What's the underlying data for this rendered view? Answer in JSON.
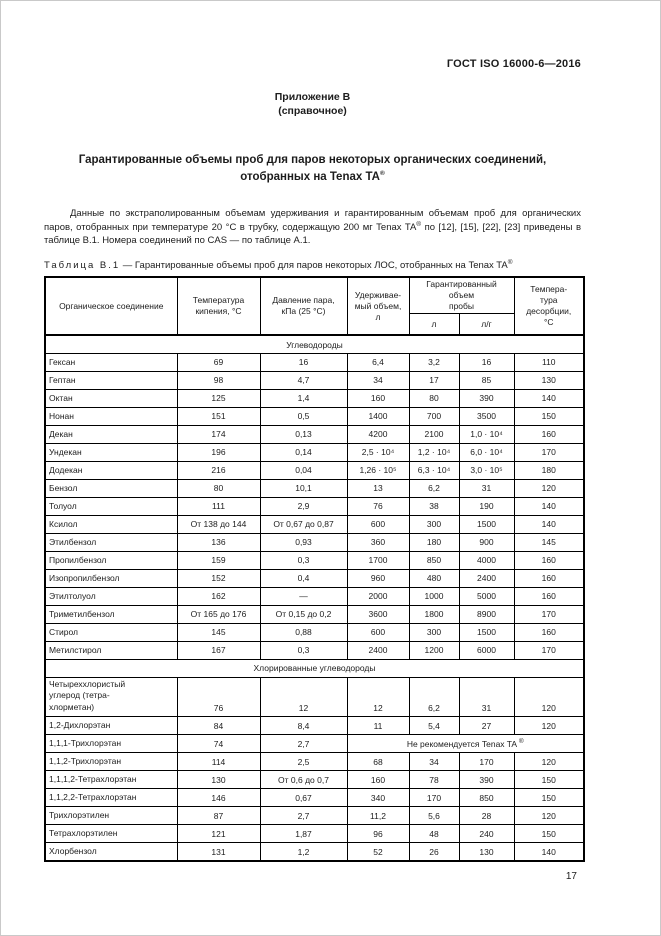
{
  "doc_header": {
    "standard": "ГОСТ ISO 16000-6—2016"
  },
  "annex": {
    "title": "Приложение В",
    "subtitle": "(справочное)"
  },
  "title": {
    "line1": "Гарантированные объемы проб для паров некоторых органических соединений,",
    "line2": "отобранных на Tenax TA"
  },
  "reg_mark": "®",
  "intro": {
    "part1": "Данные по экстраполированным объемам удерживания и гарантированным объемам проб для органических паров, отобранных при температуре 20 °С в трубку, содержащую 200 мг Tenax TA",
    "part2": " по [12], [15], [22], [23] приведены в таблице В.1. Номера соединений по CAS — по таблице А.1."
  },
  "caption": {
    "label": "Таблица В.1",
    "text": " — Гарантированные объемы проб для паров некоторых ЛОС, отобранных на Tenax TA"
  },
  "table": {
    "header": {
      "compound": "Органическое соединение",
      "boiling": "Температура\nкипения, °С",
      "pressure": "Давление пара,\nкПа (25 °С)",
      "retention": "Удерживае-\nмый объем,\nл",
      "guaranteed": "Гарантированный объем\nпробы",
      "guaranteed_l": "л",
      "guaranteed_lg": "л/г",
      "desorption": "Темпера-\nтура\nдесорбции,\n°С"
    },
    "sections": [
      {
        "title": "Углеводороды",
        "rows": [
          {
            "name": "Гексан",
            "cells": [
              "69",
              "16",
              "6,4",
              "3,2",
              "16",
              "110"
            ]
          },
          {
            "name": "Гептан",
            "cells": [
              "98",
              "4,7",
              "34",
              "17",
              "85",
              "130"
            ]
          },
          {
            "name": "Октан",
            "cells": [
              "125",
              "1,4",
              "160",
              "80",
              "390",
              "140"
            ]
          },
          {
            "name": "Нонан",
            "cells": [
              "151",
              "0,5",
              "1400",
              "700",
              "3500",
              "150"
            ]
          },
          {
            "name": "Декан",
            "cells": [
              "174",
              "0,13",
              "4200",
              "2100",
              "1,0 · 10⁴",
              "160"
            ]
          },
          {
            "name": "Ундекан",
            "cells": [
              "196",
              "0,14",
              "2,5 · 10⁴",
              "1,2 · 10⁴",
              "6,0 · 10⁴",
              "170"
            ]
          },
          {
            "name": "Додекан",
            "cells": [
              "216",
              "0,04",
              "1,26 · 10⁵",
              "6,3 · 10⁴",
              "3,0 · 10⁵",
              "180"
            ]
          },
          {
            "name": "Бензол",
            "cells": [
              "80",
              "10,1",
              "13",
              "6,2",
              "31",
              "120"
            ]
          },
          {
            "name": "Толуол",
            "cells": [
              "111",
              "2,9",
              "76",
              "38",
              "190",
              "140"
            ]
          },
          {
            "name": "Ксилол",
            "cells": [
              "От 138 до 144",
              "От 0,67 до 0,87",
              "600",
              "300",
              "1500",
              "140"
            ]
          },
          {
            "name": "Этилбензол",
            "cells": [
              "136",
              "0,93",
              "360",
              "180",
              "900",
              "145"
            ]
          },
          {
            "name": "Пропилбензол",
            "cells": [
              "159",
              "0,3",
              "1700",
              "850",
              "4000",
              "160"
            ]
          },
          {
            "name": "Изопропилбензол",
            "cells": [
              "152",
              "0,4",
              "960",
              "480",
              "2400",
              "160"
            ]
          },
          {
            "name": "Этилтолуол",
            "cells": [
              "162",
              "—",
              "2000",
              "1000",
              "5000",
              "160"
            ]
          },
          {
            "name": "Триметилбензол",
            "cells": [
              "От 165 до 176",
              "От 0,15 до 0,2",
              "3600",
              "1800",
              "8900",
              "170"
            ]
          },
          {
            "name": "Стирол",
            "cells": [
              "145",
              "0,88",
              "600",
              "300",
              "1500",
              "160"
            ]
          },
          {
            "name": "Метилстирол",
            "cells": [
              "167",
              "0,3",
              "2400",
              "1200",
              "6000",
              "170"
            ]
          }
        ]
      },
      {
        "title": "Хлорированные углеводороды",
        "rows": [
          {
            "name": "Четыреххлористый\nуглерод (тетра-\nхлорметан)",
            "valign": "bottom",
            "cells": [
              "76",
              "12",
              "12",
              "6,2",
              "31",
              "120"
            ]
          },
          {
            "name": "1,2-Дихлорэтан",
            "cells": [
              "84",
              "8,4",
              "11",
              "5,4",
              "27",
              "120"
            ]
          },
          {
            "name": "1,1,1-Трихлорэтан",
            "cells": [
              "74",
              "2,7"
            ],
            "note": "Не рекомендуется Tenax TA "
          },
          {
            "name": "1,1,2-Трихлорэтан",
            "cells": [
              "114",
              "2,5",
              "68",
              "34",
              "170",
              "120"
            ]
          },
          {
            "name": "1,1,1,2-Тетрахлорэтан",
            "cells": [
              "130",
              "От 0,6 до 0,7",
              "160",
              "78",
              "390",
              "150"
            ]
          },
          {
            "name": "1,1,2,2-Тетрахлорэтан",
            "cells": [
              "146",
              "0,67",
              "340",
              "170",
              "850",
              "150"
            ]
          },
          {
            "name": "Трихлорэтилен",
            "cells": [
              "87",
              "2,7",
              "11,2",
              "5,6",
              "28",
              "120"
            ]
          },
          {
            "name": "Тетрахлорэтилен",
            "cells": [
              "121",
              "1,87",
              "96",
              "48",
              "240",
              "150"
            ]
          },
          {
            "name": "Хлорбензол",
            "cells": [
              "131",
              "1,2",
              "52",
              "26",
              "130",
              "140"
            ]
          }
        ]
      }
    ]
  },
  "page": {
    "number": "17"
  }
}
